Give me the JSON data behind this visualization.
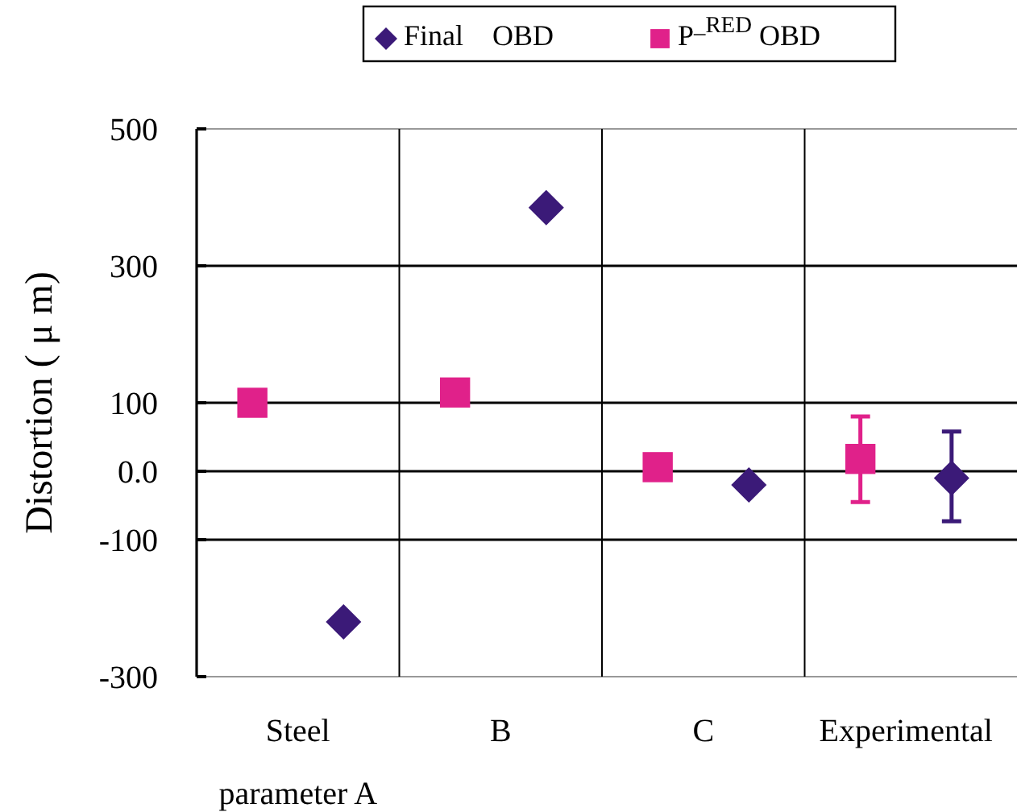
{
  "chart_data": {
    "type": "scatter",
    "ylabel": "Distortion ( μ m)",
    "categories": [
      "Steel parameter A",
      "B",
      "C",
      "Experimental"
    ],
    "series": [
      {
        "name": "Final　OBD",
        "color": "#3b1a78",
        "marker": "diamond",
        "values": [
          -220,
          385,
          -20,
          -10
        ],
        "errors": [
          null,
          null,
          null,
          [
            -73,
            58
          ]
        ]
      },
      {
        "name": "P$^{_RED}$ OBD",
        "color": "#e0218a",
        "marker": "square",
        "values": [
          100,
          115,
          6,
          18
        ],
        "errors": [
          null,
          null,
          null,
          [
            -45,
            80
          ]
        ]
      }
    ],
    "ylim": [
      -300,
      500
    ],
    "yticks": [
      -300,
      -100,
      {
        "value": 0,
        "label": "0.0"
      },
      100,
      300,
      500
    ],
    "grid": true,
    "legend": "top"
  }
}
